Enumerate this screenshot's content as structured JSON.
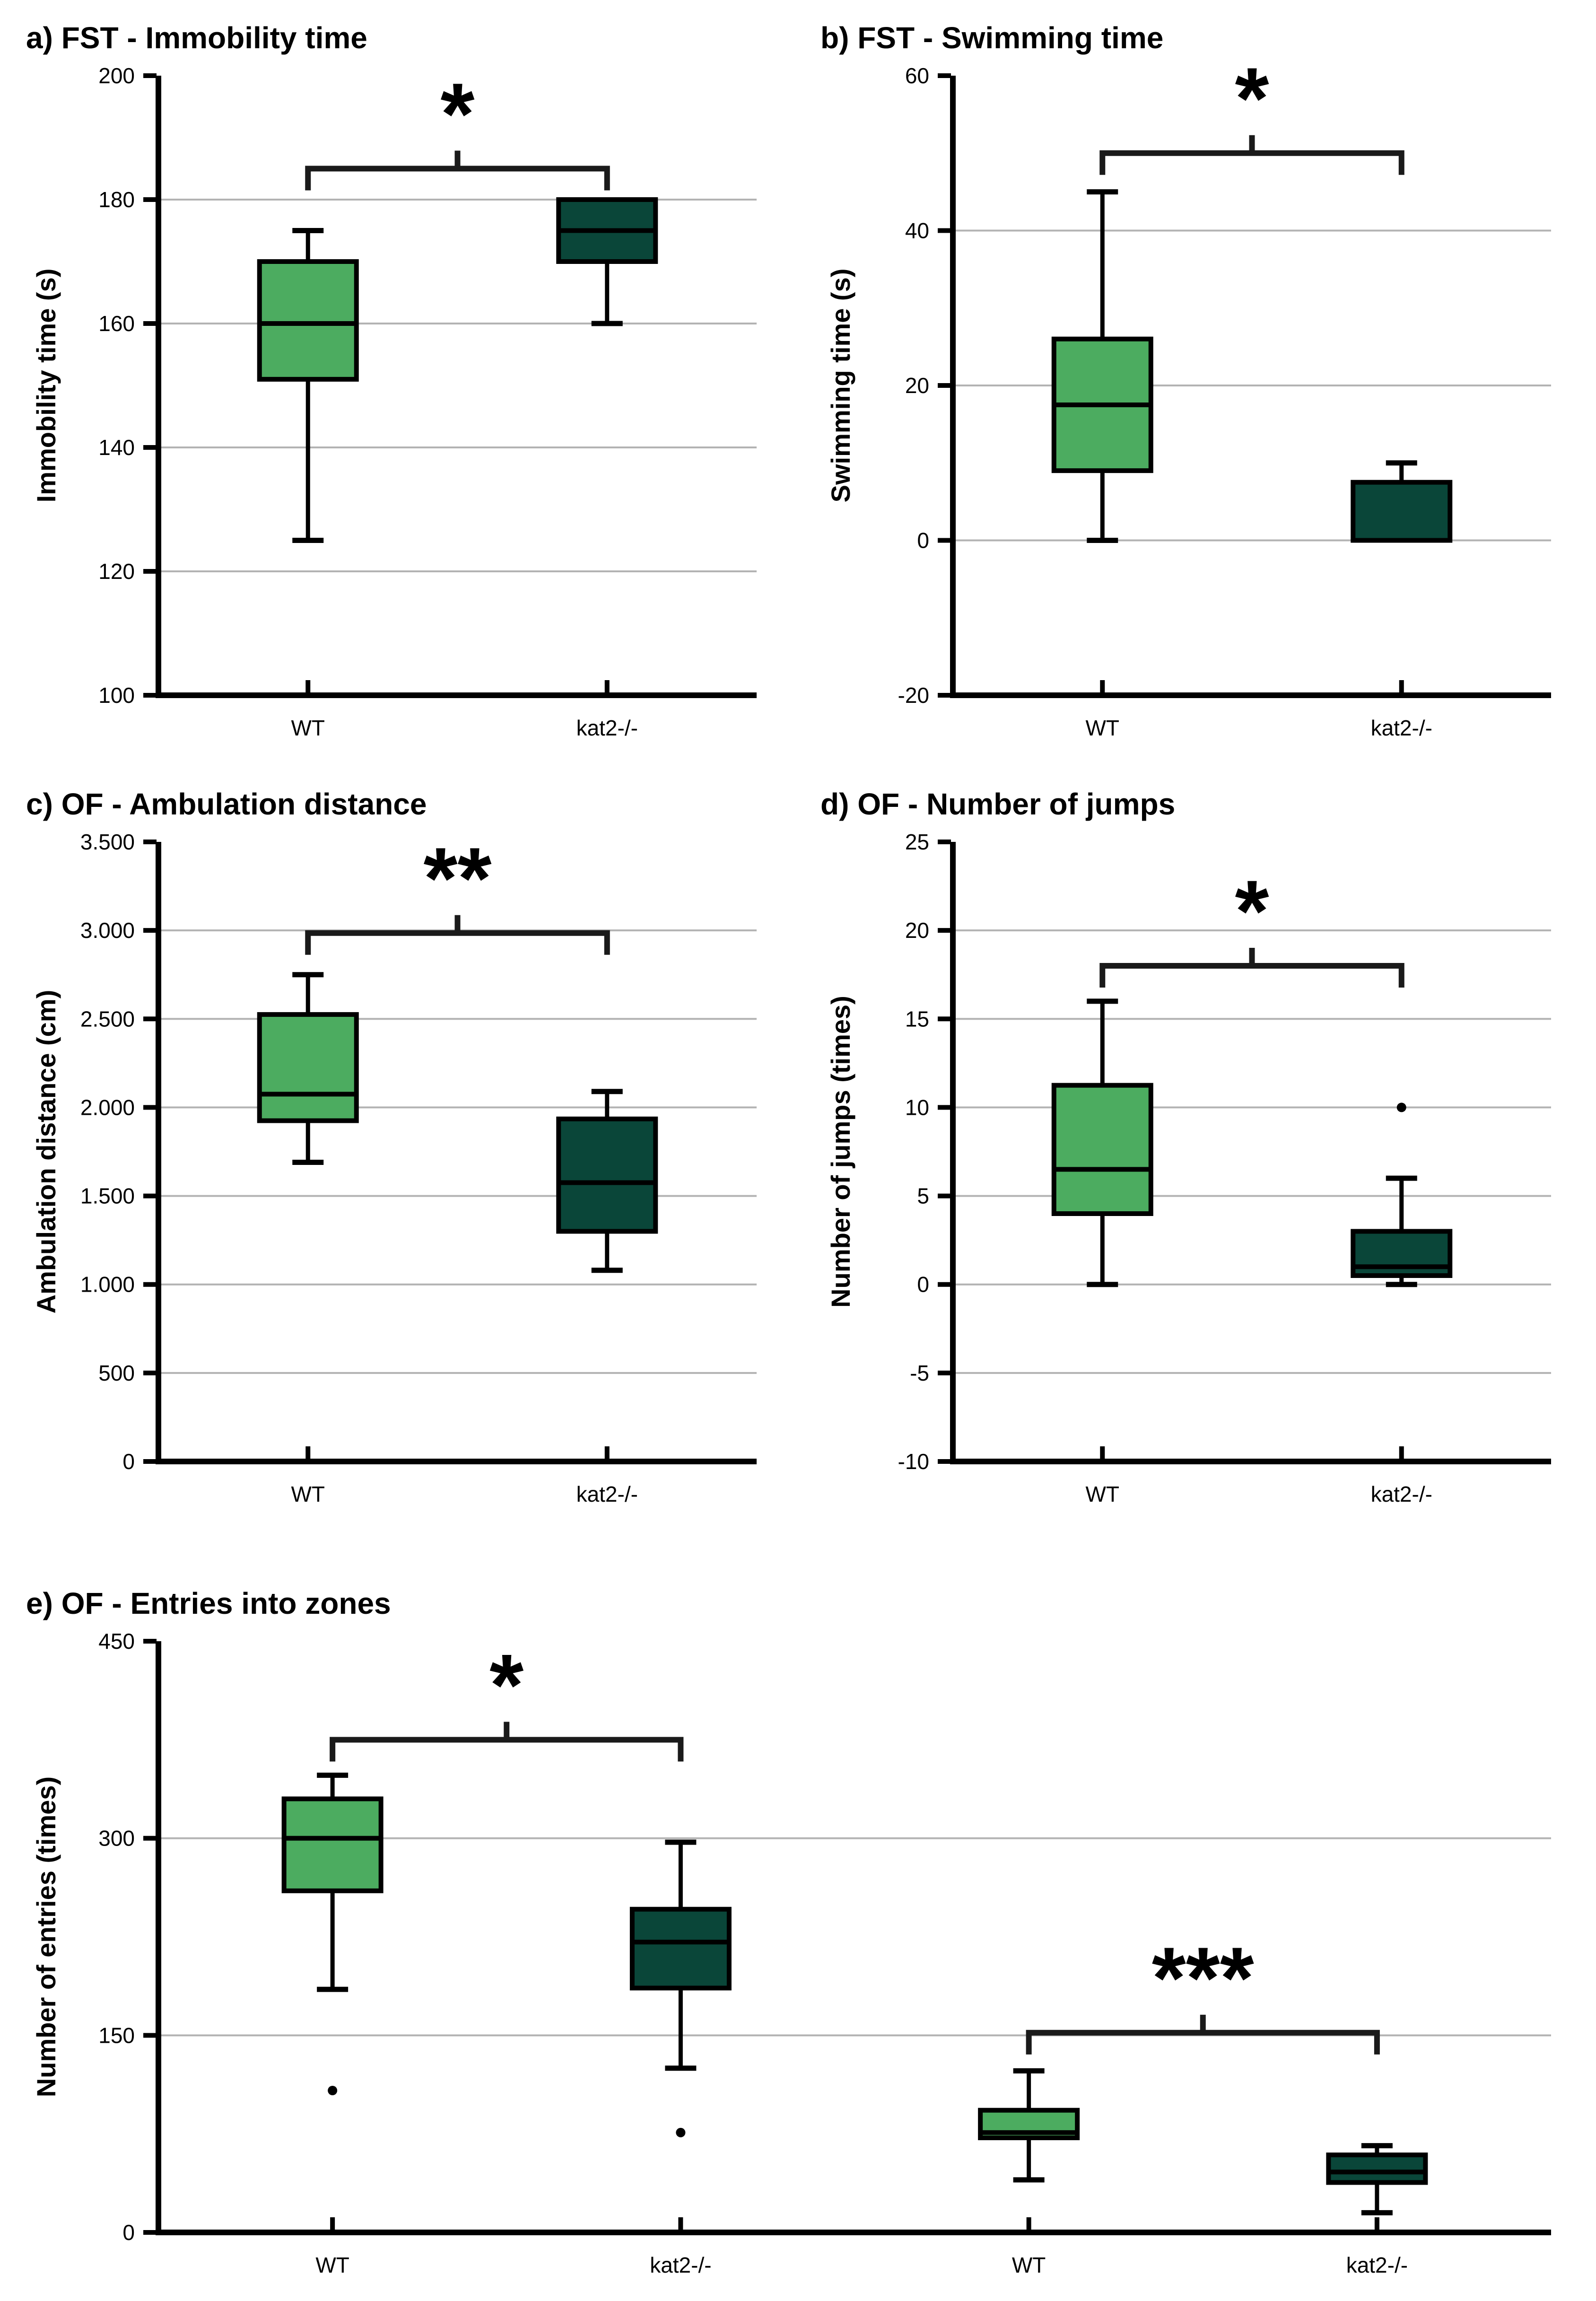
{
  "colors": {
    "box_light": "#4CAC60",
    "box_dark": "#0A4639",
    "grid": "#B3B3B3",
    "axis": "#000000",
    "significance": "#1A1A1A"
  },
  "chart_data": [
    {
      "id": "a",
      "type": "box",
      "title": "a) FST - Immobility time",
      "ylabel": "Immobility time (s)",
      "xlabel": "",
      "ylim": [
        100,
        200
      ],
      "grid": true,
      "yticks": [
        {
          "v": 100,
          "t": "100"
        },
        {
          "v": 120,
          "t": "120"
        },
        {
          "v": 140,
          "t": "140"
        },
        {
          "v": 160,
          "t": "160"
        },
        {
          "v": 180,
          "t": "180"
        },
        {
          "v": 200,
          "t": "200"
        }
      ],
      "groups": [
        {
          "label": "WT",
          "color": "light",
          "whisker_low": 125,
          "q1": 151,
          "median": 160,
          "q3": 170,
          "whisker_high": 175,
          "outliers": []
        },
        {
          "label": "kat2-/-",
          "color": "dark",
          "whisker_low": 160,
          "q1": 170,
          "median": 175,
          "q3": 180,
          "whisker_high": 180,
          "outliers": []
        }
      ],
      "significance": [
        {
          "between": [
            0,
            1
          ],
          "label": "*",
          "y": 185
        }
      ]
    },
    {
      "id": "b",
      "type": "box",
      "title": "b) FST - Swimming time",
      "ylabel": "Swimming time (s)",
      "xlabel": "",
      "ylim": [
        -20,
        60
      ],
      "grid": true,
      "yticks": [
        {
          "v": -20,
          "t": "-20"
        },
        {
          "v": 0,
          "t": "0"
        },
        {
          "v": 20,
          "t": "20"
        },
        {
          "v": 40,
          "t": "40"
        },
        {
          "v": 60,
          "t": "60"
        }
      ],
      "groups": [
        {
          "label": "WT",
          "color": "light",
          "whisker_low": 0,
          "q1": 9,
          "median": 17.5,
          "q3": 26,
          "whisker_high": 45,
          "outliers": []
        },
        {
          "label": "kat2-/-",
          "color": "dark",
          "whisker_low": 0,
          "q1": 0,
          "median": 0,
          "q3": 7.5,
          "whisker_high": 10,
          "outliers": []
        }
      ],
      "significance": [
        {
          "between": [
            0,
            1
          ],
          "label": "*",
          "y": 50
        }
      ]
    },
    {
      "id": "c",
      "type": "box",
      "title": "c) OF - Ambulation distance",
      "ylabel": "Ambulation distance (cm)",
      "xlabel": "",
      "ylim": [
        0,
        3500
      ],
      "grid": true,
      "yticks": [
        {
          "v": 0,
          "t": "0"
        },
        {
          "v": 500,
          "t": "500"
        },
        {
          "v": 1000,
          "t": "1.000"
        },
        {
          "v": 1500,
          "t": "1.500"
        },
        {
          "v": 2000,
          "t": "2.000"
        },
        {
          "v": 2500,
          "t": "2.500"
        },
        {
          "v": 3000,
          "t": "3.000"
        },
        {
          "v": 3500,
          "t": "3.500"
        }
      ],
      "groups": [
        {
          "label": "WT",
          "color": "light",
          "whisker_low": 1690,
          "q1": 1925,
          "median": 2075,
          "q3": 2525,
          "whisker_high": 2750,
          "outliers": []
        },
        {
          "label": "kat2-/-",
          "color": "dark",
          "whisker_low": 1080,
          "q1": 1300,
          "median": 1575,
          "q3": 1935,
          "whisker_high": 2090,
          "outliers": []
        }
      ],
      "significance": [
        {
          "between": [
            0,
            1
          ],
          "label": "**",
          "y": 2985
        }
      ]
    },
    {
      "id": "d",
      "type": "box",
      "title": "d) OF - Number of jumps",
      "ylabel": "Number of jumps (times)",
      "xlabel": "",
      "ylim": [
        -10,
        25
      ],
      "grid": true,
      "yticks": [
        {
          "v": -10,
          "t": "-10"
        },
        {
          "v": -5,
          "t": "-5"
        },
        {
          "v": 0,
          "t": "0"
        },
        {
          "v": 5,
          "t": "5"
        },
        {
          "v": 10,
          "t": "10"
        },
        {
          "v": 15,
          "t": "15"
        },
        {
          "v": 20,
          "t": "20"
        },
        {
          "v": 25,
          "t": "25"
        }
      ],
      "groups": [
        {
          "label": "WT",
          "color": "light",
          "whisker_low": 0,
          "q1": 4,
          "median": 6.5,
          "q3": 11.25,
          "whisker_high": 16,
          "outliers": []
        },
        {
          "label": "kat2-/-",
          "color": "dark",
          "whisker_low": 0,
          "q1": 0.5,
          "median": 1,
          "q3": 3,
          "whisker_high": 6,
          "outliers": [
            10
          ]
        }
      ],
      "significance": [
        {
          "between": [
            0,
            1
          ],
          "label": "*",
          "y": 18
        }
      ]
    },
    {
      "id": "e",
      "type": "box",
      "title": "e) OF - Entries into zones",
      "ylabel": "Number of entries (times)",
      "xlabel": "",
      "ylim": [
        0,
        450
      ],
      "grid": true,
      "yticks": [
        {
          "v": 0,
          "t": "0"
        },
        {
          "v": 150,
          "t": "150"
        },
        {
          "v": 300,
          "t": "300"
        },
        {
          "v": 450,
          "t": "450"
        }
      ],
      "groups": [
        {
          "label": "WT",
          "color": "light",
          "whisker_low": 185,
          "q1": 260,
          "median": 300,
          "q3": 330,
          "whisker_high": 348,
          "outliers": [
            108
          ]
        },
        {
          "label": "kat2-/-",
          "color": "dark",
          "whisker_low": 125,
          "q1": 186,
          "median": 221,
          "q3": 246,
          "whisker_high": 297,
          "outliers": [
            76
          ]
        },
        {
          "label": "WT",
          "color": "light",
          "whisker_low": 40,
          "q1": 72,
          "median": 76,
          "q3": 93,
          "whisker_high": 123,
          "outliers": []
        },
        {
          "label": "kat2-/-",
          "color": "dark",
          "whisker_low": 15,
          "q1": 38,
          "median": 46,
          "q3": 59,
          "whisker_high": 66,
          "outliers": []
        }
      ],
      "significance": [
        {
          "between": [
            0,
            1
          ],
          "label": "*",
          "y": 375
        },
        {
          "between": [
            2,
            3
          ],
          "label": "***",
          "y": 152
        }
      ]
    }
  ]
}
